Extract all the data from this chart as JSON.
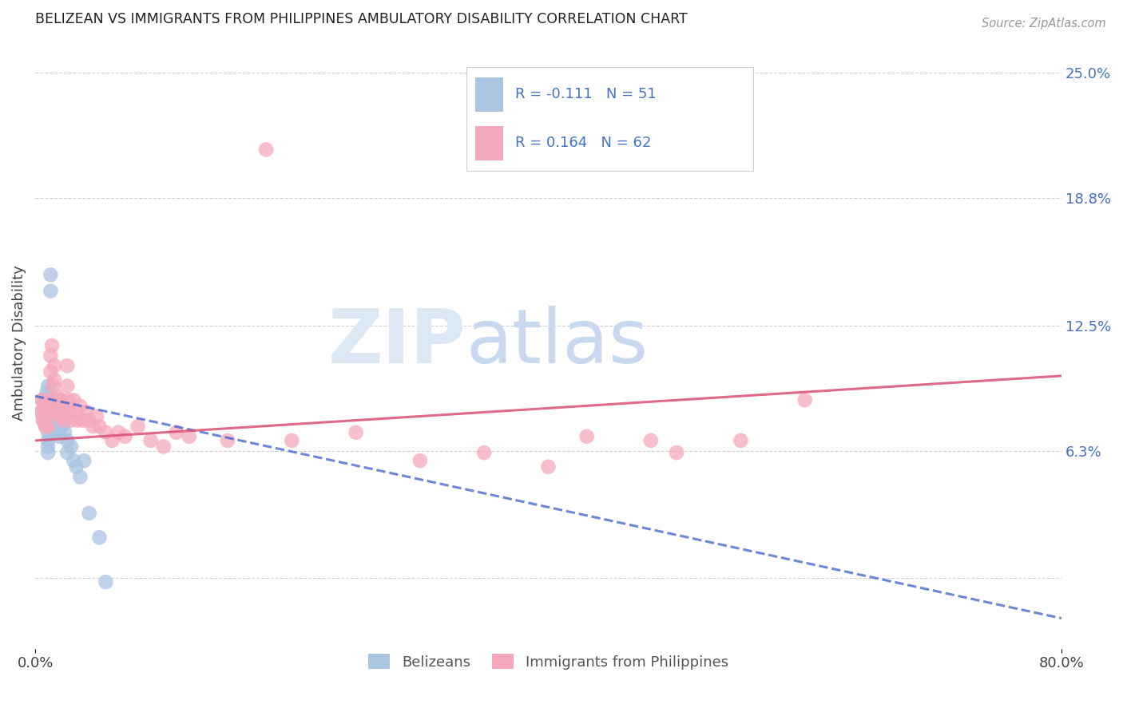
{
  "title": "BELIZEAN VS IMMIGRANTS FROM PHILIPPINES AMBULATORY DISABILITY CORRELATION CHART",
  "source": "Source: ZipAtlas.com",
  "ylabel_label": "Ambulatory Disability",
  "right_ytick_vals": [
    0.0,
    0.063,
    0.125,
    0.188,
    0.25
  ],
  "right_ytick_labels": [
    "",
    "6.3%",
    "12.5%",
    "18.8%",
    "25.0%"
  ],
  "x_min": 0.0,
  "x_max": 0.8,
  "y_min": -0.035,
  "y_max": 0.268,
  "belizean_R": -0.111,
  "belizean_N": 51,
  "philippines_R": 0.164,
  "philippines_N": 62,
  "belizean_color": "#aac4e2",
  "philippines_color": "#f5a8bb",
  "belizean_line_color": "#3a5fc8",
  "philippines_line_color": "#d94f75",
  "legend_label_1": "Belizeans",
  "legend_label_2": "Immigrants from Philippines",
  "watermark_zip": "ZIP",
  "watermark_atlas": "atlas",
  "bel_trend_x0": 0.0,
  "bel_trend_y0": 0.09,
  "bel_trend_x1": 0.8,
  "bel_trend_y1": -0.02,
  "phi_trend_x0": 0.0,
  "phi_trend_y0": 0.068,
  "phi_trend_x1": 0.8,
  "phi_trend_y1": 0.1,
  "belizean_x": [
    0.005,
    0.006,
    0.007,
    0.007,
    0.008,
    0.008,
    0.009,
    0.009,
    0.01,
    0.01,
    0.01,
    0.01,
    0.01,
    0.01,
    0.01,
    0.01,
    0.01,
    0.012,
    0.012,
    0.012,
    0.013,
    0.013,
    0.013,
    0.014,
    0.014,
    0.015,
    0.015,
    0.015,
    0.016,
    0.016,
    0.017,
    0.017,
    0.018,
    0.018,
    0.019,
    0.02,
    0.02,
    0.02,
    0.021,
    0.022,
    0.023,
    0.025,
    0.025,
    0.028,
    0.03,
    0.032,
    0.035,
    0.038,
    0.042,
    0.05,
    0.055
  ],
  "belizean_y": [
    0.082,
    0.088,
    0.078,
    0.086,
    0.075,
    0.08,
    0.092,
    0.085,
    0.088,
    0.095,
    0.082,
    0.078,
    0.075,
    0.072,
    0.068,
    0.065,
    0.062,
    0.15,
    0.142,
    0.085,
    0.082,
    0.078,
    0.072,
    0.088,
    0.08,
    0.085,
    0.078,
    0.072,
    0.088,
    0.082,
    0.078,
    0.072,
    0.082,
    0.075,
    0.07,
    0.088,
    0.082,
    0.075,
    0.08,
    0.076,
    0.072,
    0.068,
    0.062,
    0.065,
    0.058,
    0.055,
    0.05,
    0.058,
    0.032,
    0.02,
    -0.002
  ],
  "philippines_x": [
    0.004,
    0.005,
    0.006,
    0.007,
    0.008,
    0.008,
    0.009,
    0.01,
    0.01,
    0.01,
    0.011,
    0.012,
    0.012,
    0.013,
    0.014,
    0.015,
    0.015,
    0.016,
    0.017,
    0.018,
    0.019,
    0.02,
    0.02,
    0.021,
    0.022,
    0.023,
    0.025,
    0.025,
    0.026,
    0.027,
    0.028,
    0.03,
    0.032,
    0.033,
    0.035,
    0.037,
    0.04,
    0.042,
    0.045,
    0.048,
    0.05,
    0.055,
    0.06,
    0.065,
    0.07,
    0.08,
    0.09,
    0.1,
    0.11,
    0.12,
    0.15,
    0.18,
    0.2,
    0.25,
    0.3,
    0.35,
    0.4,
    0.43,
    0.48,
    0.5,
    0.55,
    0.6
  ],
  "philippines_y": [
    0.082,
    0.088,
    0.078,
    0.086,
    0.082,
    0.075,
    0.088,
    0.085,
    0.08,
    0.075,
    0.082,
    0.11,
    0.102,
    0.115,
    0.095,
    0.105,
    0.098,
    0.088,
    0.09,
    0.085,
    0.082,
    0.088,
    0.08,
    0.085,
    0.078,
    0.082,
    0.105,
    0.095,
    0.088,
    0.082,
    0.078,
    0.088,
    0.082,
    0.078,
    0.085,
    0.078,
    0.082,
    0.078,
    0.075,
    0.08,
    0.075,
    0.072,
    0.068,
    0.072,
    0.07,
    0.075,
    0.068,
    0.065,
    0.072,
    0.07,
    0.068,
    0.212,
    0.068,
    0.072,
    0.058,
    0.062,
    0.055,
    0.07,
    0.068,
    0.062,
    0.068,
    0.088
  ]
}
